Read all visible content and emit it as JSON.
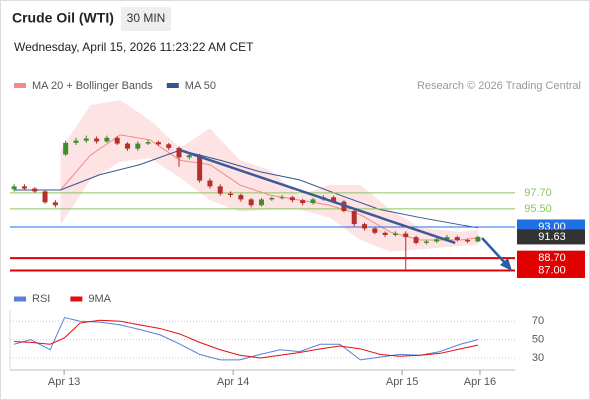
{
  "header": {
    "title": "Crude Oil (WTI)",
    "interval": "30 MIN",
    "datetime": "Wednesday, April 15, 2026 11:23:22 AM CET",
    "credit": "Research © 2026 Trading Central"
  },
  "chart_data": [
    {
      "type": "candlestick",
      "up_color": "#3c8f2c",
      "down_color": "#b5302a",
      "xlim": [
        -0.4,
        48.6
      ],
      "ylim": [
        85,
        111.2
      ],
      "open": [
        98.2,
        98.6,
        98.3,
        97.9,
        96.4,
        103.0,
        104.6,
        104.9,
        105.2,
        104.8,
        105.3,
        104.5,
        103.8,
        104.5,
        104.7,
        104.4,
        103.9,
        102.6,
        102.9,
        99.4,
        98.6,
        97.6,
        97.4,
        96.8,
        96.0,
        96.8,
        97.0,
        97.1,
        96.7,
        96.3,
        96.8,
        97.1,
        96.5,
        95.2,
        93.4,
        92.8,
        92.2,
        91.9,
        92.1,
        91.6,
        90.8,
        91.0,
        91.3,
        91.6,
        91.2,
        91.0
      ],
      "high": [
        98.9,
        98.9,
        98.5,
        98.1,
        96.7,
        104.9,
        105.3,
        105.6,
        105.5,
        105.6,
        105.5,
        104.7,
        104.8,
        105.0,
        104.9,
        104.6,
        104.1,
        103.2,
        103.1,
        99.7,
        98.9,
        97.9,
        97.6,
        97.0,
        97.0,
        97.2,
        97.4,
        97.3,
        96.9,
        97.0,
        97.4,
        97.3,
        96.7,
        95.4,
        93.6,
        93.0,
        92.4,
        92.4,
        92.4,
        91.8,
        91.2,
        91.5,
        91.9,
        91.8,
        91.4,
        91.8
      ],
      "low": [
        97.9,
        98.1,
        97.7,
        96.2,
        95.7,
        102.8,
        104.3,
        104.6,
        104.5,
        104.6,
        104.3,
        103.5,
        103.5,
        104.3,
        104.2,
        103.6,
        101.3,
        102.3,
        99.1,
        98.3,
        97.3,
        97.1,
        96.5,
        95.7,
        95.8,
        96.6,
        96.8,
        96.4,
        96.0,
        96.1,
        96.6,
        96.3,
        95.0,
        93.1,
        92.5,
        92.0,
        91.6,
        91.7,
        87.1,
        90.6,
        90.6,
        90.8,
        91.1,
        91.0,
        90.8,
        90.9
      ],
      "close": [
        98.6,
        98.3,
        97.9,
        96.4,
        96.0,
        104.6,
        104.9,
        105.2,
        104.8,
        105.3,
        104.5,
        103.8,
        104.5,
        104.7,
        104.4,
        103.9,
        102.6,
        102.9,
        99.4,
        98.6,
        97.6,
        97.4,
        96.8,
        96.0,
        96.8,
        97.0,
        97.1,
        96.7,
        96.3,
        96.8,
        97.1,
        96.5,
        95.2,
        93.4,
        92.8,
        92.2,
        91.9,
        92.1,
        91.6,
        90.8,
        91.0,
        91.3,
        91.6,
        91.2,
        91.0,
        91.63
      ],
      "series": [
        {
          "name": "MA 20 + Bollinger Bands",
          "color": "#f08a8a",
          "band_color": "#fde3e3",
          "x": [
            4.5,
            7.4,
            10.3,
            13.2,
            16.1,
            19.0,
            21.9,
            24.8,
            27.7,
            30.6,
            33.6,
            36.5,
            39.4,
            43.3,
            45
          ],
          "values": [
            98.1,
            102.9,
            105.7,
            105.0,
            102.2,
            101.6,
            98.8,
            97.4,
            96.7,
            96.0,
            94.7,
            92.3,
            91.2,
            91.2,
            91.5
          ],
          "upper": [
            103.6,
            109.8,
            110.5,
            107.7,
            103.9,
            106.6,
            102.2,
            100.9,
            97.4,
            98.8,
            98.8,
            95.4,
            92.9,
            92.3,
            92.6
          ],
          "lower": [
            93.3,
            99.5,
            102.0,
            102.5,
            99.8,
            96.7,
            95.1,
            95.4,
            95.4,
            94.3,
            91.2,
            89.6,
            89.9,
            90.4,
            90.5
          ]
        },
        {
          "name": "MA 50",
          "color": "#34558f",
          "x": [
            0,
            4.5,
            8.3,
            12.2,
            16.1,
            20.0,
            23.9,
            27.7,
            31.6,
            35.5,
            39.4,
            43.3,
            45
          ],
          "values": [
            98.1,
            98.1,
            100.2,
            101.6,
            103.6,
            102.2,
            100.6,
            99.5,
            97.4,
            95.4,
            94.3,
            93.3,
            92.9
          ]
        }
      ],
      "trendline": {
        "color": "#3d5a96",
        "x": [
          16.1,
          42.8
        ],
        "values": [
          103.6,
          90.8
        ]
      },
      "levels": [
        {
          "value": 97.7,
          "label": "97.70",
          "color": "#8cc461",
          "style": "text"
        },
        {
          "value": 95.5,
          "label": "95.50",
          "color": "#8cc461",
          "style": "text"
        },
        {
          "value": 93.0,
          "label": "93.00",
          "color": "#1f6fe5",
          "style": "box"
        },
        {
          "value": 88.7,
          "label": "88.70",
          "color": "#e00000",
          "style": "box"
        },
        {
          "value": 87.0,
          "label": "87.00",
          "color": "#e00000",
          "style": "box"
        }
      ],
      "last": {
        "value": 91.63,
        "label": "91.63",
        "color": "#333333"
      }
    },
    {
      "type": "line",
      "xlim": [
        -0.4,
        48.6
      ],
      "ylim": [
        17,
        80
      ],
      "yticks": [
        30,
        50,
        70
      ],
      "xticks": [
        {
          "value": 4.85,
          "label": "Apr 13"
        },
        {
          "value": 21.25,
          "label": "Apr 14"
        },
        {
          "value": 37.65,
          "label": "Apr 15"
        },
        {
          "value": 45.2,
          "label": "Apr 16"
        }
      ],
      "series": [
        {
          "name": "RSI",
          "color": "#5b7fd6",
          "x": [
            0,
            1.6,
            3.5,
            4.9,
            6.4,
            8.3,
            10.3,
            12.2,
            14.2,
            16.1,
            18.0,
            20.0,
            21.9,
            23.9,
            25.8,
            27.7,
            29.7,
            31.6,
            33.6,
            35.5,
            37.4,
            39.4,
            41.3,
            43.3,
            45
          ],
          "values": [
            45,
            50,
            39,
            74,
            70,
            69,
            66,
            61,
            55,
            45,
            34,
            28,
            28,
            34,
            39,
            37,
            45,
            45,
            28,
            31,
            34,
            33,
            37,
            45,
            50
          ]
        },
        {
          "name": "9MA",
          "color": "#e01010",
          "x": [
            0,
            1.6,
            3.5,
            4.9,
            6.4,
            8.3,
            10.3,
            12.2,
            14.2,
            16.1,
            18.0,
            20.0,
            21.9,
            23.9,
            25.8,
            27.7,
            29.7,
            31.6,
            33.6,
            35.5,
            37.4,
            39.4,
            41.3,
            43.3,
            45
          ],
          "values": [
            48,
            47,
            45,
            52,
            68,
            71,
            70,
            66,
            62,
            56,
            47,
            39,
            33,
            30,
            33,
            36,
            40,
            43,
            40,
            34,
            32,
            33,
            35,
            40,
            44
          ]
        }
      ]
    }
  ]
}
